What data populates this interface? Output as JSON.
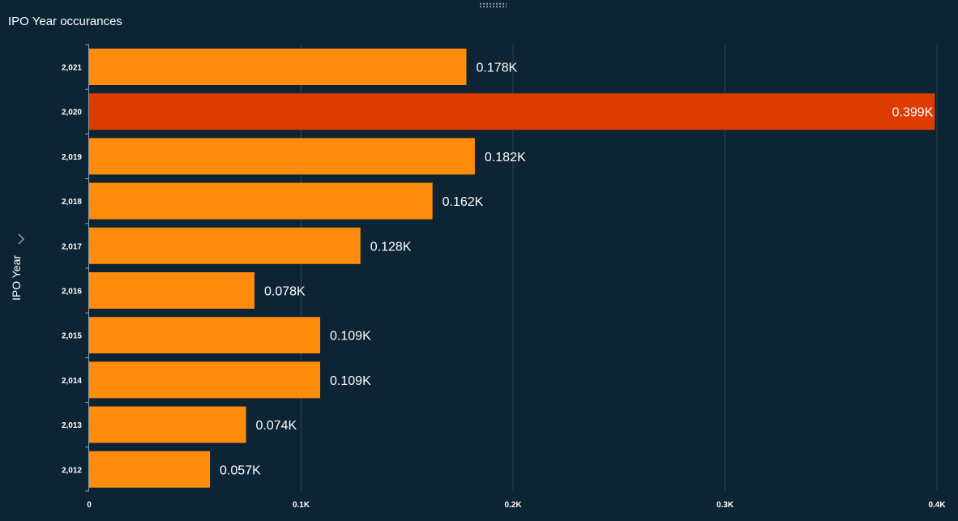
{
  "title": "IPO Year occurances",
  "colors": {
    "background": "#0d2434",
    "bar": "#ff8c0c",
    "highlight": "#de3c00",
    "grid": "#2b4657",
    "axis": "#8ea2b3"
  },
  "chart_data": {
    "type": "bar",
    "orientation": "horizontal",
    "title": "IPO Year occurances",
    "xlabel": "",
    "ylabel": "IPO Year",
    "categories": [
      "2,021",
      "2,020",
      "2,019",
      "2,018",
      "2,017",
      "2,016",
      "2,015",
      "2,014",
      "2,013",
      "2,012"
    ],
    "values": [
      178,
      399,
      182,
      162,
      128,
      78,
      109,
      109,
      74,
      57
    ],
    "labels": [
      "0.178K",
      "0.399K",
      "0.182K",
      "0.162K",
      "0.128K",
      "0.078K",
      "0.109K",
      "0.109K",
      "0.074K",
      "0.057K"
    ],
    "highlighted": [
      false,
      true,
      false,
      false,
      false,
      false,
      false,
      false,
      false,
      false
    ],
    "xlim": [
      0,
      400
    ],
    "x_ticks": [
      0,
      100,
      200,
      300,
      400
    ],
    "x_tick_labels": [
      "0",
      "0.1K",
      "0.2K",
      "0.3K",
      "0.4K"
    ],
    "grid": true,
    "legend": "none"
  }
}
